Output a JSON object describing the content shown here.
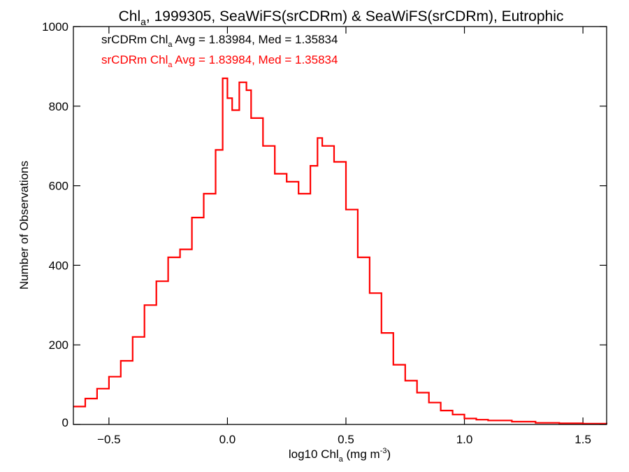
{
  "title": {
    "prefix": "Chl",
    "sub": "a",
    "suffix": ", 1999305, SeaWiFS(srCDRm) & SeaWiFS(srCDRm), Eutrophic"
  },
  "annotations": [
    {
      "prefix": "srCDRm Chl",
      "sub": "a",
      "suffix": " Avg = 1.83984, Med = 1.35834",
      "color": "#000000"
    },
    {
      "prefix": "srCDRm Chl",
      "sub": "a",
      "suffix": " Avg = 1.83984, Med = 1.35834",
      "color": "#ff0000"
    }
  ],
  "colors": {
    "series": "#ff0000",
    "axes": "#000000",
    "background": "#ffffff"
  },
  "chart_data": {
    "type": "line",
    "step": true,
    "xlabel": {
      "prefix": "log10 Chl",
      "sub": "a",
      "suffix": " (mg m",
      "sup": "-3",
      "end": ")"
    },
    "ylabel": "Number of Observations",
    "xlim": [
      -0.65,
      1.6
    ],
    "ylim": [
      0,
      1000
    ],
    "xticks": [
      -0.5,
      0.0,
      0.5,
      1.0,
      1.5
    ],
    "xtick_labels": [
      "−0.5",
      "0.0",
      "0.5",
      "1.0",
      "1.5"
    ],
    "yticks": [
      0,
      200,
      400,
      600,
      800,
      1000
    ],
    "ytick_labels": [
      "0",
      "200",
      "400",
      "600",
      "800",
      "1000"
    ],
    "grid": false,
    "legend": "none",
    "series": [
      {
        "color": "#ff0000",
        "x": [
          -0.65,
          -0.6,
          -0.55,
          -0.5,
          -0.45,
          -0.4,
          -0.35,
          -0.3,
          -0.25,
          -0.2,
          -0.15,
          -0.1,
          -0.05,
          -0.02,
          0.0,
          0.02,
          0.05,
          0.08,
          0.1,
          0.15,
          0.2,
          0.25,
          0.3,
          0.35,
          0.38,
          0.4,
          0.45,
          0.5,
          0.55,
          0.6,
          0.65,
          0.7,
          0.75,
          0.8,
          0.85,
          0.9,
          0.95,
          1.0,
          1.05,
          1.1,
          1.2,
          1.3,
          1.4,
          1.5,
          1.6
        ],
        "values": [
          45,
          65,
          90,
          120,
          160,
          220,
          300,
          360,
          420,
          440,
          520,
          580,
          690,
          870,
          820,
          790,
          860,
          840,
          770,
          700,
          630,
          610,
          580,
          650,
          720,
          700,
          660,
          540,
          420,
          330,
          230,
          150,
          110,
          80,
          55,
          35,
          25,
          15,
          12,
          10,
          7,
          4,
          3,
          2,
          1
        ]
      }
    ]
  }
}
